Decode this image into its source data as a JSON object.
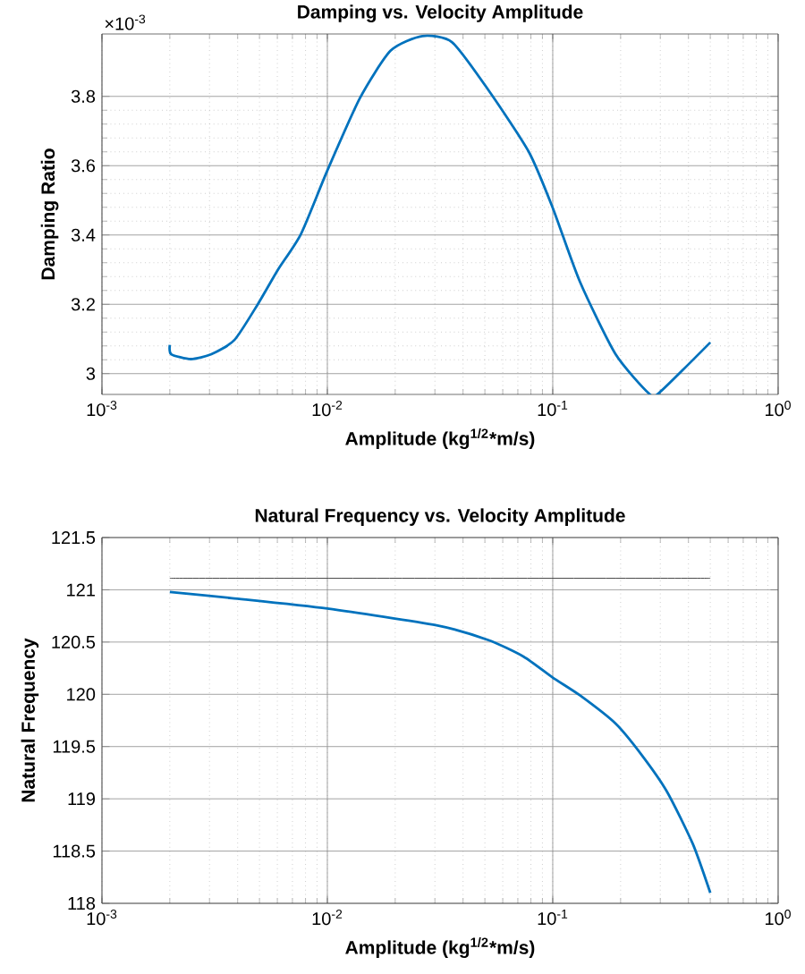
{
  "chart_data": [
    {
      "type": "line",
      "title": "Damping vs. Velocity Amplitude",
      "xlabel": "Amplitude (kg$^{1/2}$*m/s)",
      "ylabel": "Damping Ratio",
      "log": "x",
      "grid": true,
      "annotations": [
        "×10$^{-3}$"
      ],
      "xlim": [
        0.001,
        1
      ],
      "xticks": [
        {
          "value": 0.001,
          "label": "10$^{-3}$"
        },
        {
          "value": 0.01,
          "label": "10$^{-2}$"
        },
        {
          "value": 0.1,
          "label": "10$^{-1}$"
        },
        {
          "value": 1,
          "label": "10$^{0}$"
        }
      ],
      "ylim": [
        2.94,
        3.98
      ],
      "yticks": [
        3,
        3.2,
        3.4,
        3.6,
        3.8
      ],
      "x": [
        0.002,
        0.00203,
        0.00248,
        0.00306,
        0.00387,
        0.0049,
        0.00604,
        0.00764,
        0.01,
        0.01395,
        0.0191,
        0.0264,
        0.0358,
        0.0516,
        0.0783,
        0.1,
        0.132,
        0.19,
        0.268,
        0.297,
        0.5
      ],
      "series": [
        {
          "color": "#0072bd",
          "values": [
            3.083,
            3.056,
            3.042,
            3.056,
            3.097,
            3.199,
            3.3,
            3.403,
            3.586,
            3.795,
            3.932,
            3.974,
            3.956,
            3.82,
            3.64,
            3.478,
            3.265,
            3.056,
            2.942,
            2.945,
            3.09
          ]
        }
      ]
    },
    {
      "type": "line",
      "title": "Natural Frequency vs. Velocity Amplitude",
      "xlabel": "Amplitude (kg$^{1/2}$*m/s)",
      "ylabel": "Natural Frequency",
      "log": "x",
      "grid": true,
      "xlim": [
        0.001,
        1
      ],
      "xticks": [
        {
          "value": 0.001,
          "label": "10$^{-3}$"
        },
        {
          "value": 0.01,
          "label": "10$^{-2}$"
        },
        {
          "value": 0.1,
          "label": "10$^{-1}$"
        },
        {
          "value": 1,
          "label": "10$^{0}$"
        }
      ],
      "ylim": [
        118,
        121.5
      ],
      "yticks": [
        118,
        118.5,
        119,
        119.5,
        120,
        120.5,
        121,
        121.5
      ],
      "series": [
        {
          "color": "#0072bd",
          "x": [
            0.002,
            0.00378,
            0.01,
            0.0305,
            0.0516,
            0.0743,
            0.1,
            0.132,
            0.19,
            0.248,
            0.321,
            0.418,
            0.5
          ],
          "values": [
            120.98,
            120.92,
            120.82,
            120.66,
            120.52,
            120.36,
            120.16,
            119.99,
            119.72,
            119.42,
            119.07,
            118.57,
            118.1
          ]
        },
        {
          "color": "#404040",
          "x": [
            0.002,
            0.5
          ],
          "values": [
            121.11,
            121.11
          ]
        }
      ]
    }
  ]
}
